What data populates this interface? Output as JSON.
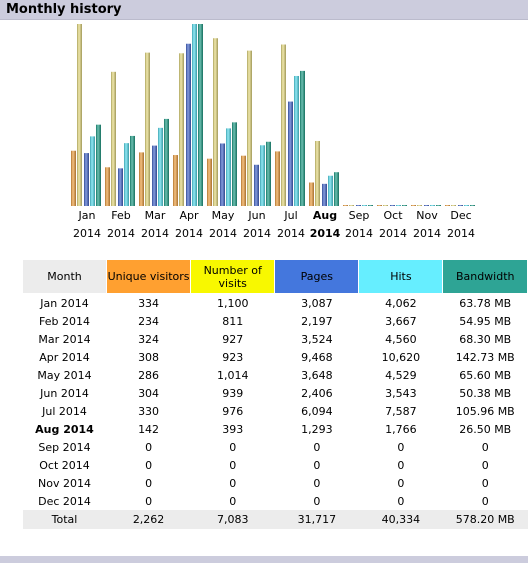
{
  "header": {
    "title": "Monthly history"
  },
  "colors": {
    "unique_visitors": "#f0a040",
    "number_of_visits": "#e8dc80",
    "pages": "#4466cc",
    "hits": "#55ddee",
    "bandwidth": "#1f9f88",
    "header_bg": "#ccccdd"
  },
  "chart_data": {
    "type": "bar",
    "categories": [
      "Jan 2014",
      "Feb 2014",
      "Mar 2014",
      "Apr 2014",
      "May 2014",
      "Jun 2014",
      "Jul 2014",
      "Aug 2014",
      "Sep 2014",
      "Oct 2014",
      "Nov 2014",
      "Dec 2014"
    ],
    "current_category": "Aug 2014",
    "series": [
      {
        "name": "Unique visitors",
        "values": [
          334,
          234,
          324,
          308,
          286,
          304,
          330,
          142,
          0,
          0,
          0,
          0
        ]
      },
      {
        "name": "Number of visits",
        "values": [
          1100,
          811,
          927,
          923,
          1014,
          939,
          976,
          393,
          0,
          0,
          0,
          0
        ]
      },
      {
        "name": "Pages",
        "values": [
          3087,
          2197,
          3524,
          9468,
          3648,
          2406,
          6094,
          1293,
          0,
          0,
          0,
          0
        ]
      },
      {
        "name": "Hits",
        "values": [
          4062,
          3667,
          4560,
          10620,
          4529,
          3543,
          7587,
          1766,
          0,
          0,
          0,
          0
        ]
      },
      {
        "name": "Bandwidth",
        "values": [
          63.78,
          54.95,
          68.3,
          142.73,
          65.6,
          50.38,
          105.96,
          26.5,
          0,
          0,
          0,
          0
        ]
      }
    ],
    "xlabel": "",
    "ylabel": "",
    "grid": false,
    "legend": "none"
  },
  "table": {
    "headers": {
      "month": "Month",
      "unique_visitors": "Unique visitors",
      "number_of_visits": "Number of visits",
      "pages": "Pages",
      "hits": "Hits",
      "bandwidth": "Bandwidth"
    },
    "rows": [
      {
        "month": "Jan 2014",
        "uv": "334",
        "nv": "1,100",
        "pages": "3,087",
        "hits": "4,062",
        "bw": "63.78 MB"
      },
      {
        "month": "Feb 2014",
        "uv": "234",
        "nv": "811",
        "pages": "2,197",
        "hits": "3,667",
        "bw": "54.95 MB"
      },
      {
        "month": "Mar 2014",
        "uv": "324",
        "nv": "927",
        "pages": "3,524",
        "hits": "4,560",
        "bw": "68.30 MB"
      },
      {
        "month": "Apr 2014",
        "uv": "308",
        "nv": "923",
        "pages": "9,468",
        "hits": "10,620",
        "bw": "142.73 MB"
      },
      {
        "month": "May 2014",
        "uv": "286",
        "nv": "1,014",
        "pages": "3,648",
        "hits": "4,529",
        "bw": "65.60 MB"
      },
      {
        "month": "Jun 2014",
        "uv": "304",
        "nv": "939",
        "pages": "2,406",
        "hits": "3,543",
        "bw": "50.38 MB"
      },
      {
        "month": "Jul 2014",
        "uv": "330",
        "nv": "976",
        "pages": "6,094",
        "hits": "7,587",
        "bw": "105.96 MB"
      },
      {
        "month": "Aug 2014",
        "uv": "142",
        "nv": "393",
        "pages": "1,293",
        "hits": "1,766",
        "bw": "26.50 MB"
      },
      {
        "month": "Sep 2014",
        "uv": "0",
        "nv": "0",
        "pages": "0",
        "hits": "0",
        "bw": "0"
      },
      {
        "month": "Oct 2014",
        "uv": "0",
        "nv": "0",
        "pages": "0",
        "hits": "0",
        "bw": "0"
      },
      {
        "month": "Nov 2014",
        "uv": "0",
        "nv": "0",
        "pages": "0",
        "hits": "0",
        "bw": "0"
      },
      {
        "month": "Dec 2014",
        "uv": "0",
        "nv": "0",
        "pages": "0",
        "hits": "0",
        "bw": "0"
      }
    ],
    "total": {
      "month": "Total",
      "uv": "2,262",
      "nv": "7,083",
      "pages": "31,717",
      "hits": "40,334",
      "bw": "578.20 MB"
    }
  }
}
